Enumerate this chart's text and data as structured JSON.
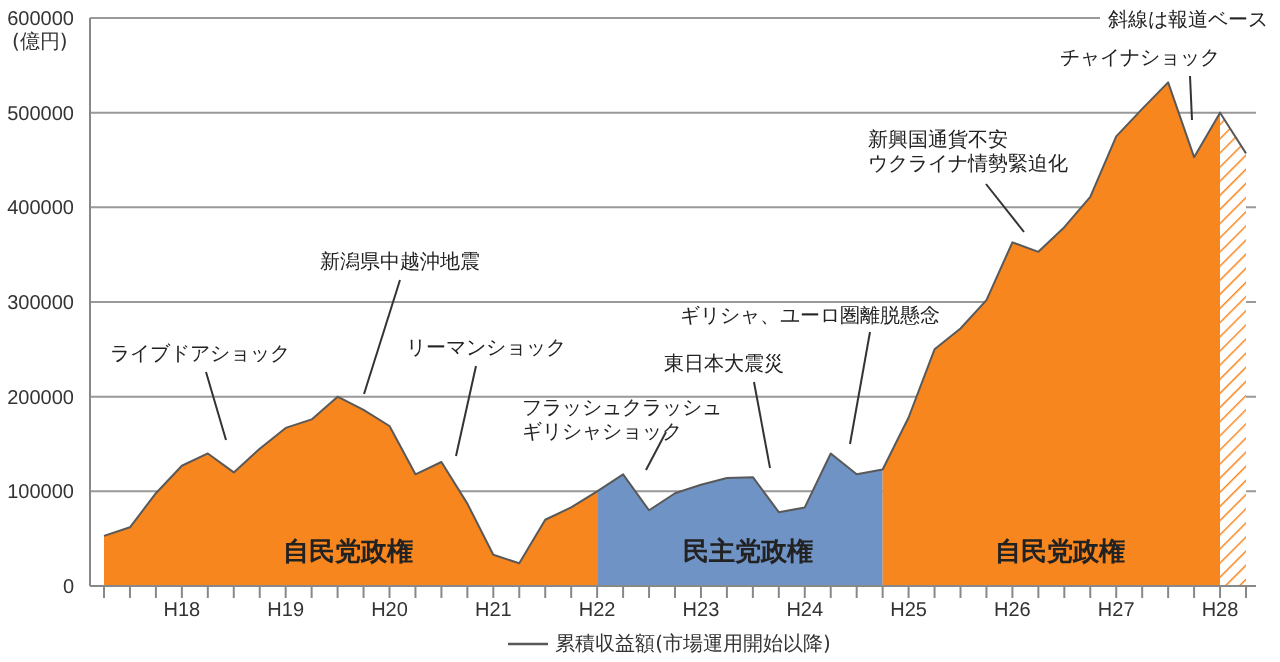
{
  "chart_data": {
    "type": "area",
    "ylabel": "(億円)",
    "ylim": [
      0,
      600000
    ],
    "yticks": [
      0,
      100000,
      200000,
      300000,
      400000,
      500000,
      600000
    ],
    "categories": [
      null,
      null,
      null,
      "H18",
      null,
      null,
      null,
      "H19",
      null,
      null,
      null,
      "H20",
      null,
      null,
      null,
      "H21",
      null,
      null,
      null,
      "H22",
      null,
      null,
      null,
      "H23",
      null,
      null,
      null,
      "H24",
      null,
      null,
      null,
      "H25",
      null,
      null,
      null,
      "H26",
      null,
      null,
      null,
      "H27",
      null,
      null,
      null,
      "H28",
      null
    ],
    "grid": "y",
    "legend": "bottom",
    "series": [
      {
        "color": "#f7861e",
        "values": [
          53000,
          62000,
          98000,
          127000,
          140000,
          120000,
          145000,
          167000,
          176000,
          200000,
          186000,
          169000,
          118000,
          131000,
          87000,
          33000,
          24000,
          70000,
          83000,
          100000,
          null,
          null,
          null,
          null,
          null,
          null,
          null,
          null,
          null,
          null,
          null,
          null,
          null,
          null,
          null,
          null,
          null,
          null,
          null,
          null,
          null,
          null,
          null,
          null,
          null
        ]
      },
      {
        "color": "#6f93c4",
        "values": [
          null,
          null,
          null,
          null,
          null,
          null,
          null,
          null,
          null,
          null,
          null,
          null,
          null,
          null,
          null,
          null,
          null,
          null,
          null,
          100000,
          118000,
          80000,
          98000,
          107000,
          114000,
          115000,
          78000,
          83000,
          140000,
          118000,
          123000,
          null,
          null,
          null,
          null,
          null,
          null,
          null,
          null,
          null,
          null,
          null,
          null,
          null,
          null
        ]
      },
      {
        "color": "#f7861e",
        "values": [
          null,
          null,
          null,
          null,
          null,
          null,
          null,
          null,
          null,
          null,
          null,
          null,
          null,
          null,
          null,
          null,
          null,
          null,
          null,
          null,
          null,
          null,
          null,
          null,
          null,
          null,
          null,
          null,
          null,
          null,
          123000,
          178000,
          250000,
          272000,
          302000,
          363000,
          353000,
          379000,
          411000,
          475000,
          504000,
          532000,
          453000,
          500000,
          null
        ]
      },
      {
        "color": "#f7861e",
        "line_style": "dashed",
        "values": [
          null,
          null,
          null,
          null,
          null,
          null,
          null,
          null,
          null,
          null,
          null,
          null,
          null,
          null,
          null,
          null,
          null,
          null,
          null,
          null,
          null,
          null,
          null,
          null,
          null,
          null,
          null,
          null,
          null,
          null,
          null,
          null,
          null,
          null,
          null,
          null,
          null,
          null,
          null,
          null,
          null,
          null,
          null,
          500000,
          457000
        ]
      },
      {
        "type": "line",
        "name": "累積収益額(市場運用開始以降)",
        "color": "#595959",
        "values": [
          53000,
          62000,
          98000,
          127000,
          140000,
          120000,
          145000,
          167000,
          176000,
          200000,
          186000,
          169000,
          118000,
          131000,
          87000,
          33000,
          24000,
          70000,
          83000,
          100000,
          118000,
          80000,
          98000,
          107000,
          114000,
          115000,
          78000,
          83000,
          140000,
          118000,
          123000,
          178000,
          250000,
          272000,
          302000,
          363000,
          353000,
          379000,
          411000,
          475000,
          504000,
          532000,
          453000,
          500000,
          457000
        ]
      }
    ],
    "annotations": [
      "ライブドアショック",
      "新潟県中越沖地震",
      "リーマンショック",
      "フラッシュクラッシュギリシャショック",
      "東日本大震災",
      "ギリシャ、ユーロ圏離脱懸念",
      "新興国通貨不安ウクライナ情勢緊迫化",
      "チャイナショック",
      "斜線は報道ベース",
      "自民党政権",
      "民主党政権",
      "自民党政権"
    ]
  }
}
